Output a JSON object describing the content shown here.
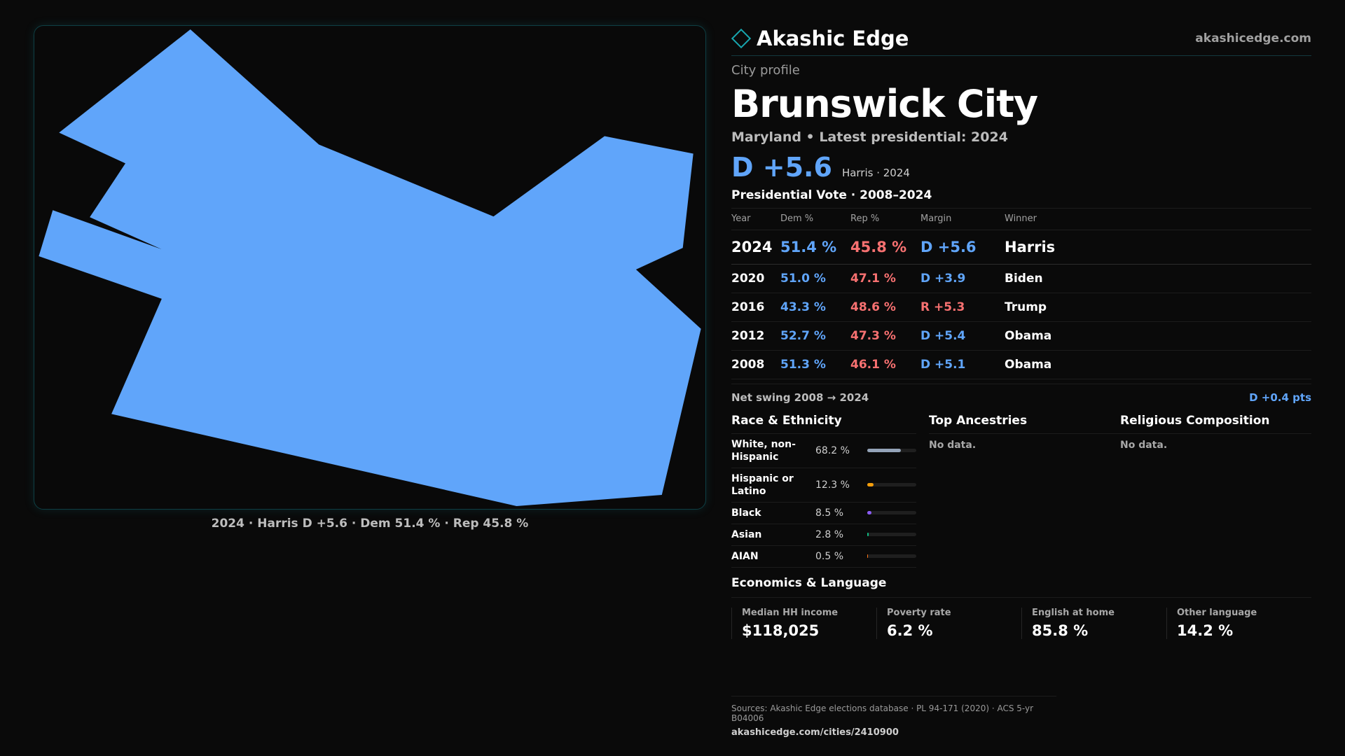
{
  "map": {
    "fill_color": "#60a5fa",
    "caption": "2024 · Harris D +5.6 · Dem 51.4 % · Rep 45.8 %"
  },
  "header": {
    "brand_icon": "diamond-icon",
    "brand_name": "Akashic Edge",
    "site": "akashicedge.com"
  },
  "profile": {
    "eyebrow": "City profile",
    "city": "Brunswick City",
    "subtitle": "Maryland • Latest presidential: 2024",
    "margin": "D +5.6",
    "margin_note": "Harris · 2024"
  },
  "votes": {
    "title": "Presidential Vote · 2008–2024",
    "headers": {
      "year": "Year",
      "dem": "Dem %",
      "rep": "Rep %",
      "margin": "Margin",
      "winner": "Winner"
    },
    "rows": [
      {
        "year": "2024",
        "dem": "51.4 %",
        "rep": "45.8 %",
        "margin": "D +5.6",
        "party": "D",
        "winner": "Harris"
      },
      {
        "year": "2020",
        "dem": "51.0 %",
        "rep": "47.1 %",
        "margin": "D +3.9",
        "party": "D",
        "winner": "Biden"
      },
      {
        "year": "2016",
        "dem": "43.3 %",
        "rep": "48.6 %",
        "margin": "R +5.3",
        "party": "R",
        "winner": "Trump"
      },
      {
        "year": "2012",
        "dem": "52.7 %",
        "rep": "47.3 %",
        "margin": "D +5.4",
        "party": "D",
        "winner": "Obama"
      },
      {
        "year": "2008",
        "dem": "51.3 %",
        "rep": "46.1 %",
        "margin": "D +5.1",
        "party": "D",
        "winner": "Obama"
      }
    ],
    "swing_label": "Net swing 2008 → 2024",
    "swing_value": "D +0.4 pts"
  },
  "race": {
    "title": "Race & Ethnicity",
    "rows": [
      {
        "name": "White, non-Hispanic",
        "pct": "68.2 %",
        "share": 0.682,
        "color": "#94a3b8"
      },
      {
        "name": "Hispanic or Latino",
        "pct": "12.3 %",
        "share": 0.123,
        "color": "#f59e0b"
      },
      {
        "name": "Black",
        "pct": "8.5 %",
        "share": 0.085,
        "color": "#8b5cf6"
      },
      {
        "name": "Asian",
        "pct": "2.8 %",
        "share": 0.028,
        "color": "#10b981"
      },
      {
        "name": "AIAN",
        "pct": "0.5 %",
        "share": 0.005,
        "color": "#f97316"
      }
    ]
  },
  "ancestries": {
    "title": "Top Ancestries",
    "empty": "No data."
  },
  "religion": {
    "title": "Religious Composition",
    "empty": "No data."
  },
  "economics": {
    "title": "Economics & Language",
    "cards": [
      {
        "label": "Median HH income",
        "value": "$118,025"
      },
      {
        "label": "Poverty rate",
        "value": "6.2 %"
      },
      {
        "label": "English at home",
        "value": "85.8 %"
      },
      {
        "label": "Other language",
        "value": "14.2 %"
      }
    ]
  },
  "footer": {
    "sources": "Sources: Akashic Edge elections database · PL 94-171 (2020) · ACS 5-yr B04006",
    "url": "akashicedge.com/cities/2410900"
  }
}
